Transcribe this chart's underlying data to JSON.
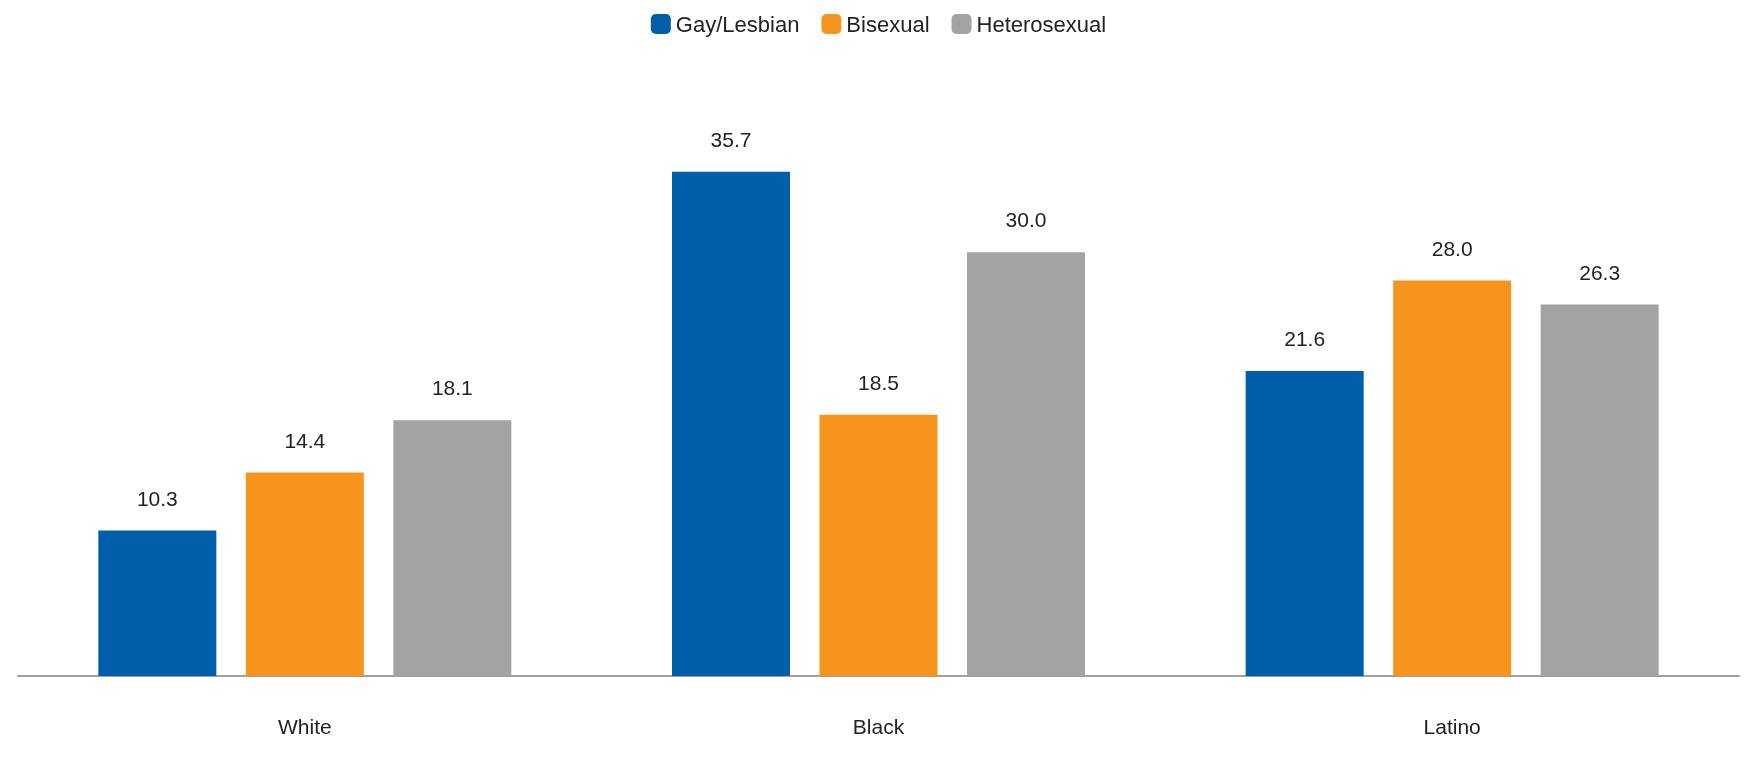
{
  "chart_data": {
    "type": "bar",
    "categories": [
      "White",
      "Black",
      "Latino"
    ],
    "series": [
      {
        "name": "Gay/Lesbian",
        "color": "#005eaa",
        "values": [
          10.3,
          35.7,
          21.6
        ],
        "value_labels": [
          "10.3",
          "35.7",
          "21.6"
        ]
      },
      {
        "name": "Bisexual",
        "color": "#f7941d",
        "values": [
          14.4,
          18.5,
          28.0
        ],
        "value_labels": [
          "14.4",
          "18.5",
          "28.0"
        ]
      },
      {
        "name": "Heterosexual",
        "color": "#a5a3a2",
        "values": [
          18.1,
          30.0,
          26.3
        ],
        "value_labels": [
          "18.1",
          "30.0",
          "26.3"
        ]
      }
    ],
    "legend": "top"
  }
}
